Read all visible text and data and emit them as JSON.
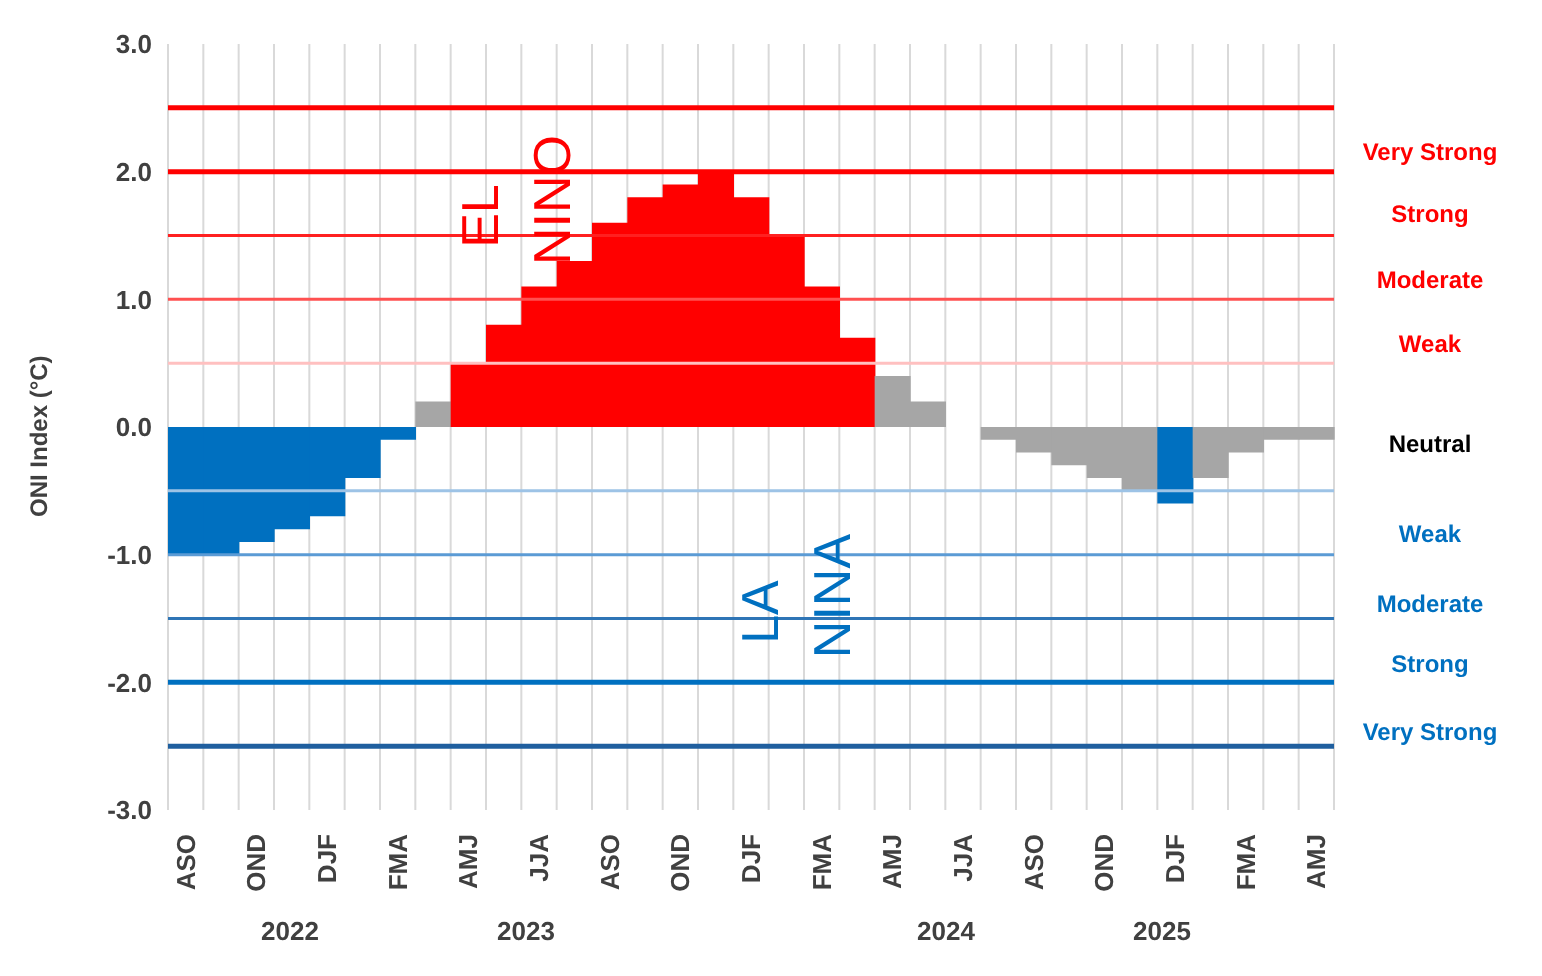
{
  "chart_data": {
    "type": "bar",
    "ylabel": "ONI Index (°C)",
    "categories": [
      "ASO",
      null,
      "OND",
      null,
      "DJF",
      null,
      "FMA",
      null,
      "AMJ",
      null,
      "JJA",
      null,
      "ASO",
      null,
      "OND",
      null,
      "DJF",
      null,
      "FMA",
      null,
      "AMJ",
      null,
      "JJA",
      null,
      "ASO",
      null,
      "OND",
      null,
      "DJF",
      null,
      "FMA",
      null,
      "AMJ"
    ],
    "values": [
      -1.0,
      -1.0,
      -0.9,
      -0.8,
      -0.7,
      -0.4,
      -0.1,
      0.2,
      0.5,
      0.8,
      1.1,
      1.3,
      1.6,
      1.8,
      1.9,
      2.0,
      1.8,
      1.5,
      1.1,
      0.7,
      0.4,
      0.2,
      0.0,
      -0.1,
      -0.2,
      -0.3,
      -0.4,
      -0.5,
      -0.6,
      -0.4,
      -0.2,
      -0.1,
      -0.1
    ],
    "colors": [
      "#0070c0",
      "#0070c0",
      "#0070c0",
      "#0070c0",
      "#0070c0",
      "#0070c0",
      "#0070c0",
      "#a6a6a6",
      "#ff0000",
      "#ff0000",
      "#ff0000",
      "#ff0000",
      "#ff0000",
      "#ff0000",
      "#ff0000",
      "#ff0000",
      "#ff0000",
      "#ff0000",
      "#ff0000",
      "#ff0000",
      "#a6a6a6",
      "#a6a6a6",
      "#a6a6a6",
      "#a6a6a6",
      "#a6a6a6",
      "#a6a6a6",
      "#a6a6a6",
      "#a6a6a6",
      "#0070c0",
      "#a6a6a6",
      "#a6a6a6",
      "#a6a6a6",
      "#a6a6a6"
    ],
    "ylim": [
      -3,
      3
    ],
    "yticks": [
      {
        "value": -3,
        "label": "-3.0"
      },
      {
        "value": -2,
        "label": "-2.0"
      },
      {
        "value": -1,
        "label": "-1.0"
      },
      {
        "value": 0,
        "label": "0.0"
      },
      {
        "value": 1,
        "label": "1.0"
      },
      {
        "value": 2,
        "label": "2.0"
      },
      {
        "value": 3,
        "label": "3.0"
      }
    ],
    "grid": "x",
    "ref_lines": [
      {
        "axis": "y",
        "value": 2.5,
        "color": "#ff0000"
      },
      {
        "axis": "y",
        "value": 2.0,
        "color": "#ff0000"
      },
      {
        "axis": "y",
        "value": 1.5,
        "color": "#ff2020"
      },
      {
        "axis": "y",
        "value": 1.0,
        "color": "#ff5050"
      },
      {
        "axis": "y",
        "value": 0.5,
        "color": "#ffc0c0"
      },
      {
        "axis": "y",
        "value": -0.5,
        "color": "#9dc3e6"
      },
      {
        "axis": "y",
        "value": -1.0,
        "color": "#5b9bd5"
      },
      {
        "axis": "y",
        "value": -1.5,
        "color": "#2e75b6"
      },
      {
        "axis": "y",
        "value": -2.0,
        "color": "#0070c0"
      },
      {
        "axis": "y",
        "value": -2.5,
        "color": "#1f5f9f"
      }
    ],
    "annotations": [
      "EL NINO",
      "LA NINA",
      "2022",
      "2023",
      "2024",
      "2025",
      "Very Strong",
      "Strong",
      "Moderate",
      "Weak",
      "Neutral",
      "Weak",
      "Moderate",
      "Strong",
      "Very Strong"
    ]
  }
}
